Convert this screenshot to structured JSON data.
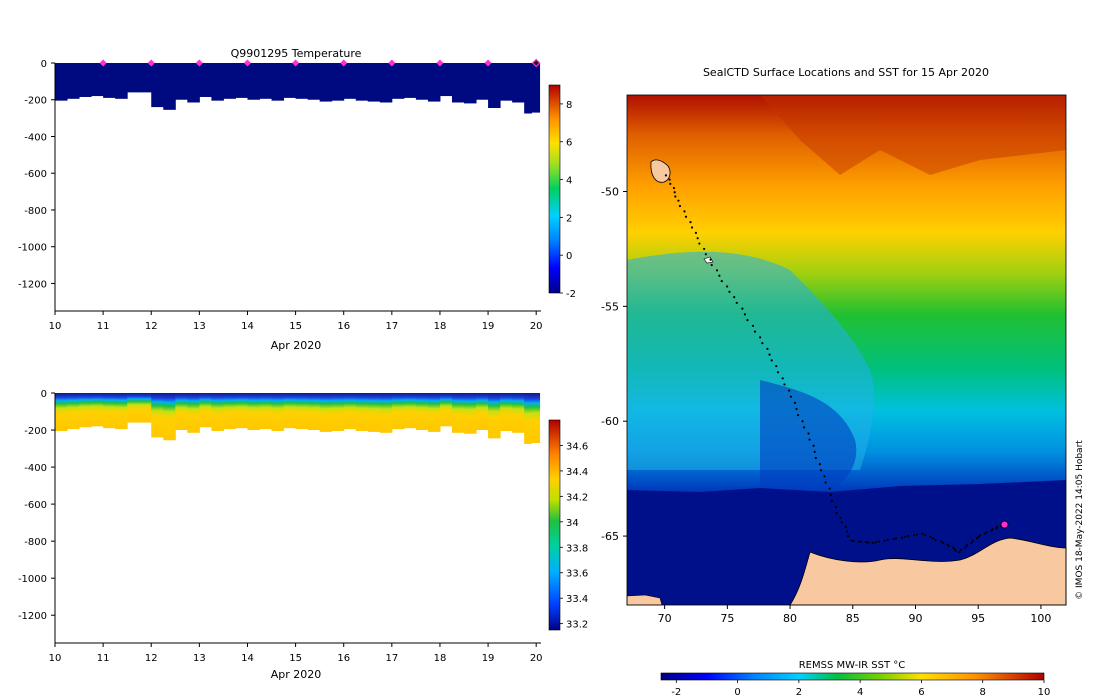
{
  "chart_data": [
    {
      "type": "heatmap",
      "id": "temperature-section",
      "title": "Q9901295  Temperature",
      "xlabel": "Apr 2020",
      "xticks": [
        10,
        11,
        12,
        13,
        14,
        15,
        16,
        17,
        18,
        19,
        20
      ],
      "xlim": [
        10,
        20.1
      ],
      "yticks": [
        0,
        -200,
        -400,
        -600,
        -800,
        -1000,
        -1200
      ],
      "ylim": [
        -1350,
        0
      ],
      "colorbar": {
        "ticks": [
          -2,
          0,
          2,
          4,
          6,
          8
        ],
        "range": [
          -2,
          9
        ]
      },
      "profile_markers_days": [
        11,
        12,
        13,
        14,
        15,
        16,
        17,
        18,
        19,
        20
      ],
      "profiles": {
        "days": [
          10.0,
          10.25,
          10.5,
          10.75,
          11.0,
          11.25,
          11.5,
          11.75,
          12.0,
          12.25,
          12.5,
          12.75,
          13.0,
          13.25,
          13.5,
          13.75,
          14.0,
          14.25,
          14.5,
          14.75,
          15.0,
          15.25,
          15.5,
          15.75,
          16.0,
          16.25,
          16.5,
          16.75,
          17.0,
          17.25,
          17.5,
          17.75,
          18.0,
          18.25,
          18.5,
          18.75,
          19.0,
          19.25,
          19.5,
          19.75,
          19.9
        ],
        "depths": [
          205,
          195,
          185,
          180,
          190,
          195,
          160,
          160,
          240,
          255,
          200,
          215,
          185,
          205,
          195,
          190,
          200,
          195,
          205,
          190,
          195,
          200,
          210,
          205,
          195,
          205,
          210,
          215,
          195,
          190,
          200,
          210,
          180,
          215,
          220,
          200,
          245,
          205,
          215,
          275,
          270
        ]
      }
    },
    {
      "type": "heatmap",
      "id": "salinity-section",
      "title": "",
      "xlabel": "Apr 2020",
      "xticks": [
        10,
        11,
        12,
        13,
        14,
        15,
        16,
        17,
        18,
        19,
        20
      ],
      "xlim": [
        10,
        20.1
      ],
      "yticks": [
        0,
        -200,
        -400,
        -600,
        -800,
        -1000,
        -1200
      ],
      "ylim": [
        -1350,
        0
      ],
      "colorbar": {
        "ticks": [
          33.2,
          33.4,
          33.6,
          33.8,
          34,
          34.2,
          34.4,
          34.6
        ],
        "range": [
          33.15,
          34.8
        ]
      }
    },
    {
      "type": "heatmap",
      "id": "sst-map",
      "title": "SealCTD Surface Locations and SST for 15 Apr 2020",
      "xticks": [
        70,
        75,
        80,
        85,
        90,
        95,
        100
      ],
      "xlim": [
        67,
        102
      ],
      "yticks": [
        -50,
        -55,
        -60,
        -65
      ],
      "ylim": [
        -68,
        -45.8
      ],
      "colorbar": {
        "label": "REMSS MW-IR SST °C",
        "ticks": [
          -2,
          0,
          2,
          4,
          6,
          8,
          10
        ],
        "range": [
          -2.5,
          10
        ]
      },
      "track": [
        [
          70.2,
          -49.3
        ],
        [
          71.1,
          -50.4
        ],
        [
          72.4,
          -51.8
        ],
        [
          73.8,
          -53.2
        ],
        [
          75.5,
          -54.6
        ],
        [
          77.3,
          -56.1
        ],
        [
          78.9,
          -57.6
        ],
        [
          80.3,
          -59.2
        ],
        [
          81.6,
          -60.8
        ],
        [
          82.7,
          -62.4
        ],
        [
          83.8,
          -64.0
        ],
        [
          84.9,
          -65.2
        ],
        [
          86.5,
          -65.3
        ],
        [
          88.5,
          -65.1
        ],
        [
          90.5,
          -64.9
        ],
        [
          92.3,
          -65.3
        ],
        [
          93.5,
          -65.7
        ],
        [
          94.8,
          -65.1
        ],
        [
          96.2,
          -64.7
        ],
        [
          97.1,
          -64.5
        ]
      ],
      "current_position": [
        97.1,
        -64.5
      ]
    }
  ],
  "credit": "© IMOS 18-May-2022 14:05 Hobart"
}
